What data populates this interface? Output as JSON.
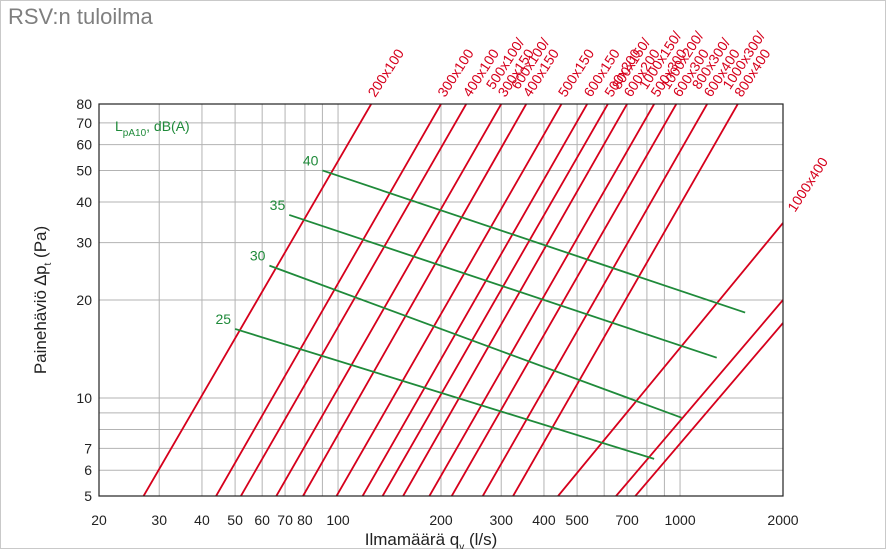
{
  "page": {
    "title": "RSV:n tuloilma"
  },
  "chart_data": {
    "type": "line",
    "title": "RSV:n tuloilma",
    "x_scale": "log",
    "y_scale": "log",
    "xlim": [
      20,
      2000
    ],
    "ylim": [
      5,
      80
    ],
    "x_ticks": [
      20,
      30,
      40,
      50,
      60,
      70,
      80,
      100,
      200,
      300,
      400,
      500,
      700,
      1000,
      2000
    ],
    "x_tick_labels": [
      "20",
      "30",
      "40",
      "50",
      "60",
      "70",
      "80",
      "100",
      "200",
      "300",
      "400",
      "500",
      "700",
      "1000",
      "2000"
    ],
    "y_ticks": [
      5,
      6,
      7,
      10,
      20,
      30,
      40,
      50,
      60,
      70,
      80
    ],
    "y_tick_labels": [
      "5",
      "6",
      "7",
      "10",
      "20",
      "30",
      "40",
      "50",
      "60",
      "70",
      "80"
    ],
    "x_grid": [
      20,
      30,
      40,
      50,
      60,
      70,
      80,
      90,
      100,
      200,
      300,
      400,
      500,
      600,
      700,
      800,
      900,
      1000,
      2000
    ],
    "y_grid": [
      5,
      6,
      7,
      8,
      9,
      10,
      20,
      30,
      40,
      50,
      60,
      70,
      80
    ],
    "grid": true,
    "xlabel": {
      "main": "Ilmamäärä q",
      "sub": "v",
      "unit": " (l/s)"
    },
    "ylabel": {
      "main": "Painehäviö ∆p",
      "sub": "t",
      "unit": " (Pa)"
    },
    "legend_label": {
      "main": "L",
      "sub": "pA10",
      "unit": ", dB(A)"
    },
    "colors": {
      "duct_lines": "#d6001c",
      "noise_lines": "#1f8a3a",
      "grid": "#b3b3b3",
      "axes": "#222222"
    },
    "duct_series": [
      {
        "name": "200x100",
        "points": [
          [
            27,
            5
          ],
          [
            125,
            80
          ]
        ]
      },
      {
        "name": "300x100",
        "points": [
          [
            44,
            5
          ],
          [
            200,
            80
          ]
        ]
      },
      {
        "name": "400x100",
        "points": [
          [
            52,
            5
          ],
          [
            237,
            80
          ]
        ]
      },
      {
        "name": "500x100/\n300x150",
        "points": [
          [
            66,
            5
          ],
          [
            300,
            80
          ]
        ]
      },
      {
        "name": "600x100/\n400x150",
        "points": [
          [
            79,
            5
          ],
          [
            355,
            80
          ]
        ]
      },
      {
        "name": "500x150",
        "points": [
          [
            99,
            5
          ],
          [
            450,
            80
          ]
        ]
      },
      {
        "name": "600x150",
        "points": [
          [
            118,
            5
          ],
          [
            535,
            80
          ]
        ]
      },
      {
        "name": "500x200",
        "points": [
          [
            135,
            5
          ],
          [
            615,
            80
          ]
        ]
      },
      {
        "name": "800x150/\n600x200",
        "points": [
          [
            155,
            5
          ],
          [
            700,
            80
          ]
        ]
      },
      {
        "name": "1000x150/\n500x300",
        "points": [
          [
            185,
            5
          ],
          [
            840,
            80
          ]
        ]
      },
      {
        "name": "1000x200/\n600x300",
        "points": [
          [
            215,
            5
          ],
          [
            975,
            80
          ]
        ]
      },
      {
        "name": "800x300/\n600x400",
        "points": [
          [
            265,
            5
          ],
          [
            1200,
            80
          ]
        ]
      },
      {
        "name": "1000x300/\n800x400",
        "points": [
          [
            325,
            5
          ],
          [
            1475,
            80
          ]
        ]
      },
      {
        "name": "1000x400",
        "points": [
          [
            440,
            5
          ],
          [
            2000,
            34.5
          ]
        ]
      },
      {
        "name": "",
        "points": [
          [
            650,
            5
          ],
          [
            2000,
            20
          ]
        ]
      },
      {
        "name": "",
        "points": [
          [
            740,
            5
          ],
          [
            2000,
            17
          ]
        ]
      }
    ],
    "noise_series": [
      {
        "name": "25",
        "points": [
          [
            50,
            16.3
          ],
          [
            840,
            6.5
          ]
        ]
      },
      {
        "name": "30",
        "points": [
          [
            63,
            25.5
          ],
          [
            1010,
            8.7
          ]
        ]
      },
      {
        "name": "35",
        "points": [
          [
            72,
            36.5
          ],
          [
            1280,
            13.3
          ]
        ]
      },
      {
        "name": "40",
        "points": [
          [
            90,
            50
          ],
          [
            1550,
            18.3
          ]
        ]
      }
    ]
  }
}
